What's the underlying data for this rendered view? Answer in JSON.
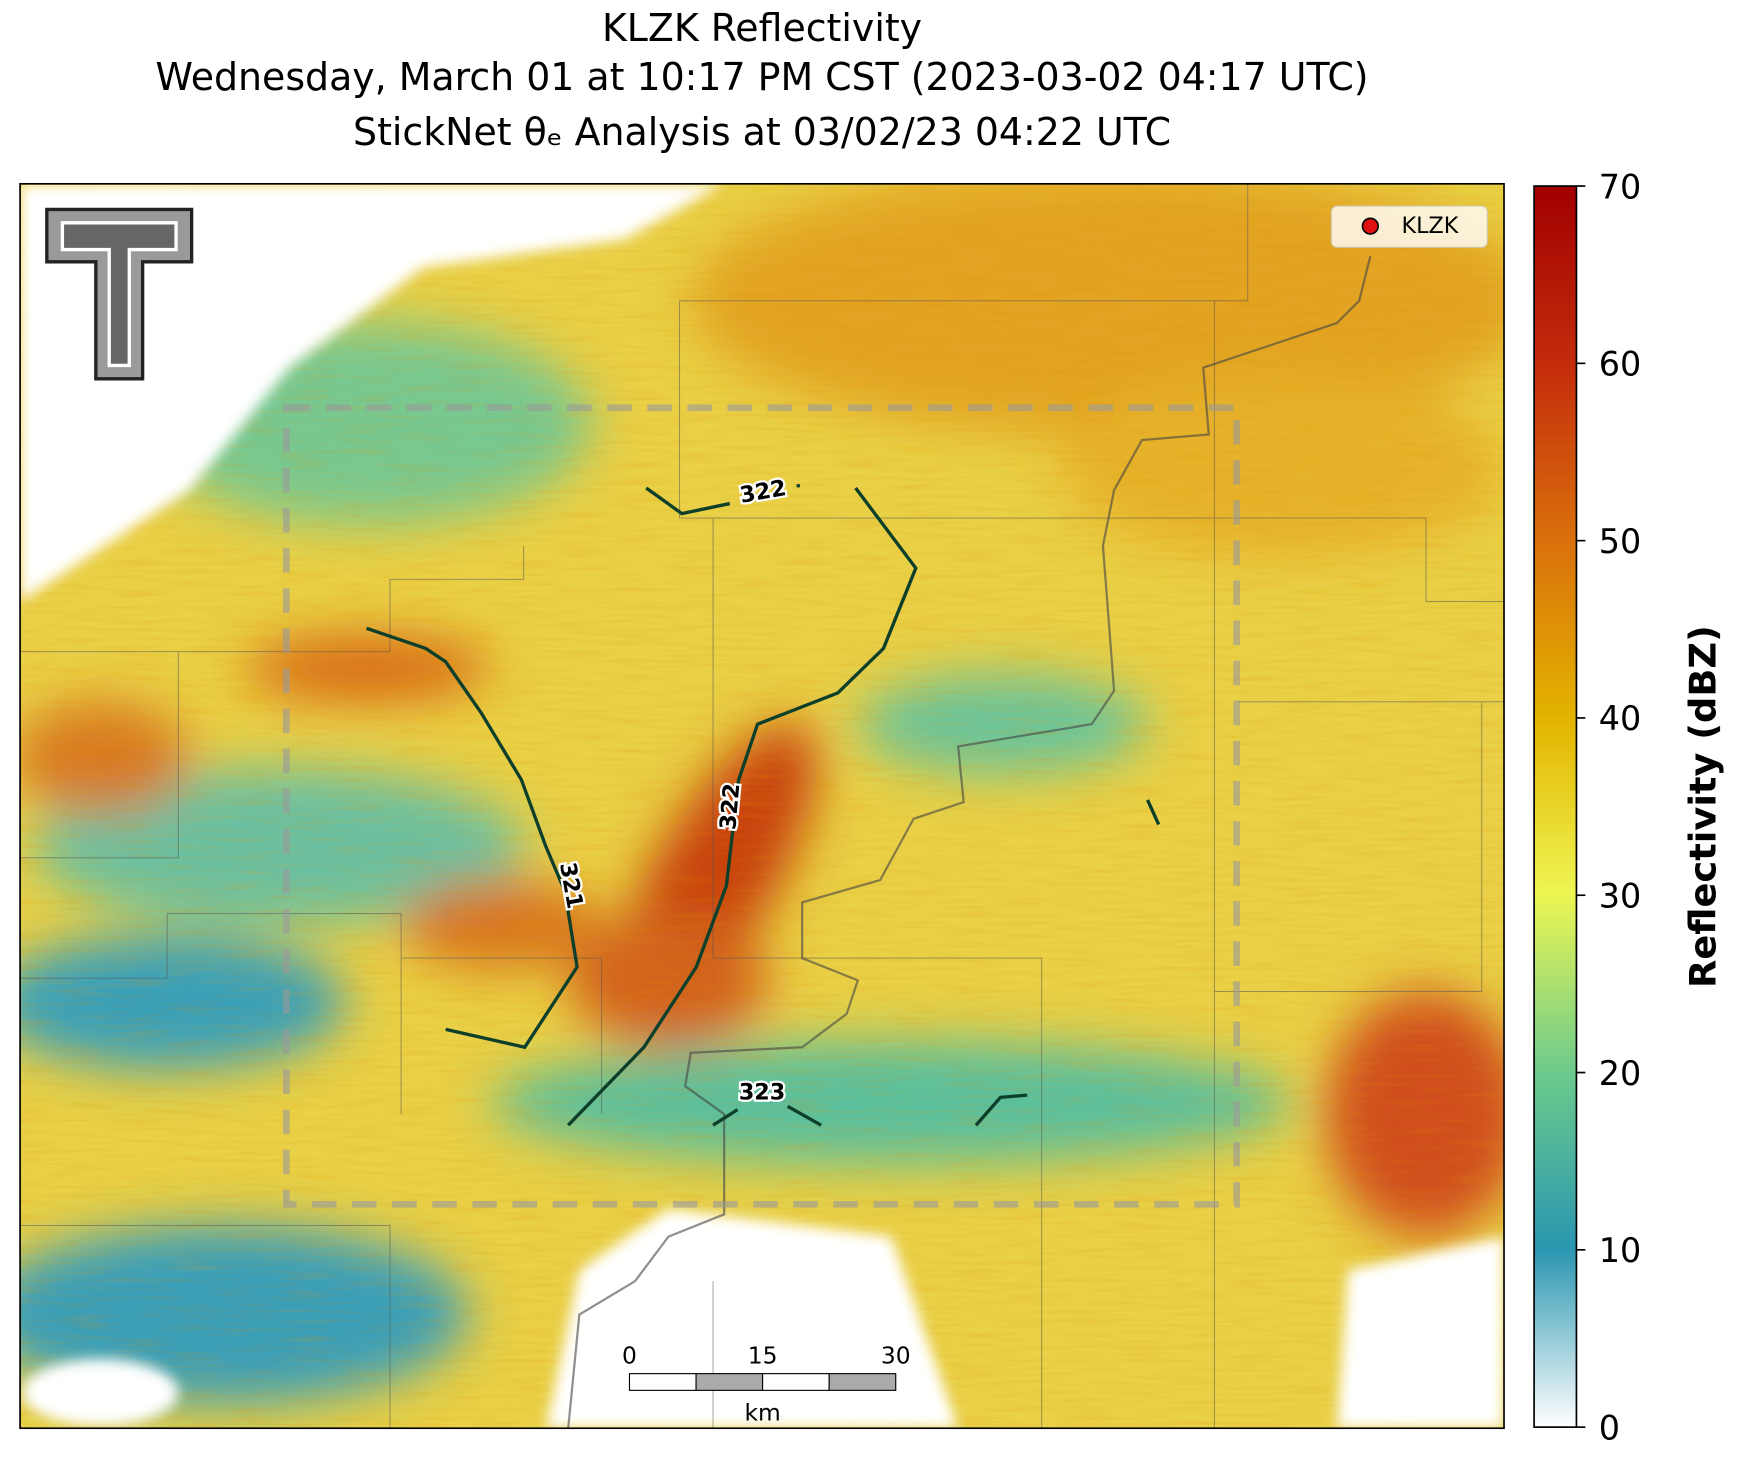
{
  "title": [
    "KLZK Reflectivity",
    "Wednesday, March 01 at 10:17 PM CST (2023-03-02 04:17 UTC)",
    "StickNet θₑ Analysis at 03/02/23 04:22 UTC"
  ],
  "legend": {
    "label": "KLZK"
  },
  "contours": [
    {
      "label": 322
    },
    {
      "label": 322
    },
    {
      "label": 321
    },
    {
      "label": 323
    }
  ],
  "scale_bar": {
    "ticks": [
      0,
      15,
      30
    ],
    "unit": "km"
  },
  "colorbar": {
    "label": "Reflectivity (dBZ)",
    "lim": [
      0,
      70
    ],
    "ticks": [
      0,
      10,
      20,
      30,
      40,
      50,
      60,
      70
    ]
  }
}
